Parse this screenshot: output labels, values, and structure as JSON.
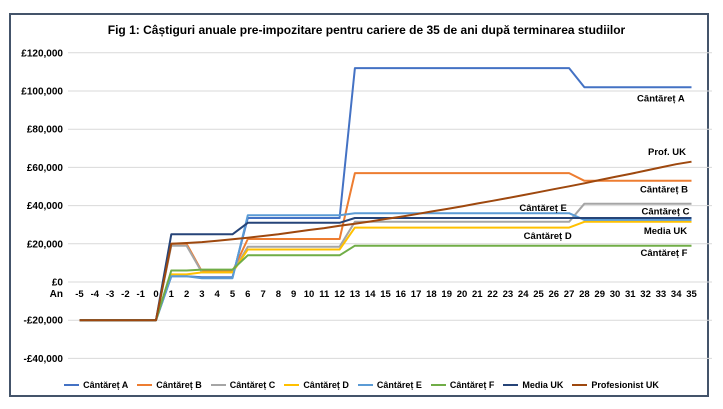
{
  "figure": {
    "border_color": "#44546A",
    "background": "#FFFFFF",
    "gridline_color": "#D9D9D9",
    "text_color": "#000000"
  },
  "chart_data": {
    "type": "line",
    "title": "Fig 1: Câștiguri anuale pre-impozitare pentru cariere de 35 de ani după terminarea studiilor",
    "xlabel": "An",
    "ylabel": "",
    "currency": "£",
    "ylim": [
      -40000,
      120000
    ],
    "ytick_step": 20000,
    "grid": true,
    "legend_position": "bottom",
    "x": [
      -5,
      -4,
      -3,
      -2,
      -1,
      0,
      1,
      2,
      3,
      4,
      5,
      6,
      7,
      8,
      9,
      10,
      11,
      12,
      13,
      14,
      15,
      16,
      17,
      18,
      19,
      20,
      21,
      22,
      23,
      24,
      25,
      26,
      27,
      28,
      29,
      30,
      31,
      32,
      33,
      34,
      35
    ],
    "series": [
      {
        "key": "cantaret-a",
        "name": "Cântăreț A",
        "color": "#4472C4",
        "values": [
          -20000,
          -20000,
          -20000,
          -20000,
          -20000,
          -20000,
          3000,
          3000,
          2500,
          2500,
          2500,
          33500,
          33500,
          33500,
          33500,
          33500,
          33500,
          33500,
          112000,
          112000,
          112000,
          112000,
          112000,
          112000,
          112000,
          112000,
          112000,
          112000,
          112000,
          112000,
          112000,
          112000,
          112000,
          102000,
          102000,
          102000,
          102000,
          102000,
          102000,
          102000,
          102000
        ]
      },
      {
        "key": "cantaret-b",
        "name": "Cântăreț B",
        "color": "#ED7D31",
        "values": [
          -20000,
          -20000,
          -20000,
          -20000,
          -20000,
          -20000,
          20000,
          20000,
          5500,
          5500,
          5500,
          22500,
          22500,
          22500,
          22500,
          22500,
          22500,
          22500,
          57000,
          57000,
          57000,
          57000,
          57000,
          57000,
          57000,
          57000,
          57000,
          57000,
          57000,
          57000,
          57000,
          57000,
          57000,
          53000,
          53000,
          53000,
          53000,
          53000,
          53000,
          53000,
          53000
        ]
      },
      {
        "key": "cantaret-c",
        "name": "Cântăreț C",
        "color": "#A5A5A5",
        "values": [
          -20000,
          -20000,
          -20000,
          -20000,
          -20000,
          -20000,
          19000,
          19000,
          5000,
          5000,
          5000,
          18500,
          18500,
          18500,
          18500,
          18500,
          18500,
          18500,
          31500,
          31500,
          31500,
          31500,
          31500,
          31500,
          31500,
          31500,
          31500,
          31500,
          31500,
          31500,
          31500,
          31500,
          31500,
          41000,
          41000,
          41000,
          41000,
          41000,
          41000,
          41000,
          41000
        ]
      },
      {
        "key": "cantaret-d",
        "name": "Cântăreț D",
        "color": "#FFC000",
        "values": [
          -20000,
          -20000,
          -20000,
          -20000,
          -20000,
          -20000,
          4000,
          4000,
          5000,
          5000,
          5000,
          17000,
          17000,
          17000,
          17000,
          17000,
          17000,
          17000,
          28500,
          28500,
          28500,
          28500,
          28500,
          28500,
          28500,
          28500,
          28500,
          28500,
          28500,
          28500,
          28500,
          28500,
          28500,
          31500,
          31500,
          31500,
          31500,
          31500,
          31500,
          31500,
          31500
        ]
      },
      {
        "key": "cantaret-e",
        "name": "Cântăreț E",
        "color": "#5B9BD5",
        "values": [
          -20000,
          -20000,
          -20000,
          -20000,
          -20000,
          -20000,
          3000,
          3000,
          2000,
          2000,
          2000,
          35000,
          35000,
          35000,
          35000,
          35000,
          35000,
          35000,
          36000,
          36000,
          36000,
          36000,
          36000,
          36000,
          36000,
          36000,
          36000,
          36000,
          36000,
          36000,
          36000,
          36000,
          36000,
          32500,
          32500,
          32500,
          32500,
          32500,
          32500,
          32500,
          32500
        ]
      },
      {
        "key": "cantaret-f",
        "name": "Cântăreț F",
        "color": "#70AD47",
        "values": [
          -20000,
          -20000,
          -20000,
          -20000,
          -20000,
          -20000,
          6000,
          6000,
          6500,
          6500,
          6500,
          14000,
          14000,
          14000,
          14000,
          14000,
          14000,
          14000,
          19000,
          19000,
          19000,
          19000,
          19000,
          19000,
          19000,
          19000,
          19000,
          19000,
          19000,
          19000,
          19000,
          19000,
          19000,
          19000,
          19000,
          19000,
          19000,
          19000,
          19000,
          19000,
          19000
        ]
      },
      {
        "key": "media-uk",
        "name": "Media UK",
        "color": "#264478",
        "values": [
          -20000,
          -20000,
          -20000,
          -20000,
          -20000,
          -20000,
          25000,
          25000,
          25000,
          25000,
          25000,
          31000,
          31000,
          31000,
          31000,
          31000,
          31000,
          31000,
          33500,
          33500,
          33500,
          33500,
          33500,
          33500,
          33500,
          33500,
          33500,
          33500,
          33500,
          33500,
          33500,
          33500,
          33500,
          33500,
          33500,
          33500,
          33500,
          33500,
          33500,
          33500,
          33500
        ]
      },
      {
        "key": "profesionist-uk",
        "name": "Profesionist UK",
        "color": "#9E480E",
        "values": [
          -20000,
          -20000,
          -20000,
          -20000,
          -20000,
          -20000,
          20000,
          20400,
          20900,
          21600,
          22400,
          23200,
          24100,
          25000,
          26100,
          27200,
          28200,
          29400,
          30500,
          31700,
          33000,
          34200,
          35500,
          36900,
          38200,
          39600,
          41100,
          42500,
          44000,
          45500,
          47000,
          48600,
          50100,
          51700,
          53400,
          55000,
          56600,
          58300,
          60000,
          61700,
          63000
        ]
      }
    ],
    "annotations": [
      {
        "key": "label-cantaret-a",
        "text": "Cântăreț A",
        "year": 33.0,
        "value": 96000
      },
      {
        "key": "label-prof-uk",
        "text": "Prof. UK",
        "year": 33.4,
        "value": 68000
      },
      {
        "key": "label-cantaret-b",
        "text": "Cântăreț B",
        "year": 33.2,
        "value": 48500
      },
      {
        "key": "label-cantaret-e",
        "text": "Cântăreț E",
        "year": 25.3,
        "value": 38700
      },
      {
        "key": "label-cantaret-c",
        "text": "Cântăreț C",
        "year": 33.3,
        "value": 37000
      },
      {
        "key": "label-media-uk",
        "text": "Media UK",
        "year": 33.3,
        "value": 26700
      },
      {
        "key": "label-cantaret-d",
        "text": "Cântăreț D",
        "year": 25.6,
        "value": 24000
      },
      {
        "key": "label-cantaret-f",
        "text": "Cântăreț F",
        "year": 33.2,
        "value": 15200
      }
    ]
  }
}
